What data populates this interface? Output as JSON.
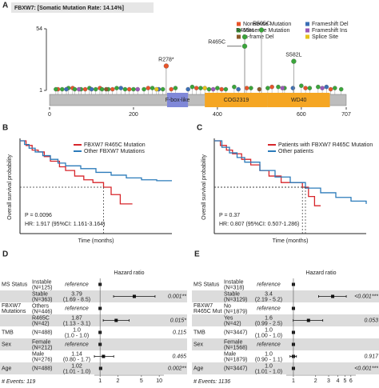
{
  "chart_data": [
    {
      "type": "lollipop",
      "label": "A",
      "title": "FBXW7: [Somatic Mutation Rate: 14.14%]",
      "xlim": [
        0,
        707
      ],
      "xticks": [
        0,
        200,
        400,
        600,
        707
      ],
      "ylim": [
        1,
        54
      ],
      "yticks": [
        1,
        54
      ],
      "series": [
        {
          "name": "Nonsense Mutation",
          "color": "#e8542a",
          "x": [
            20,
            55,
            85,
            120,
            150,
            190,
            235,
            290,
            350,
            410,
            470,
            530,
            610,
            670
          ],
          "values": [
            2,
            3,
            2,
            3,
            2,
            2,
            3,
            2,
            3,
            2,
            3,
            4,
            3,
            2
          ]
        },
        {
          "name": "Missense Mutation",
          "color": "#3aa53a",
          "x": [
            15,
            30,
            45,
            60,
            75,
            95,
            110,
            125,
            140,
            160,
            180,
            200,
            225,
            245,
            270,
            300,
            340,
            360,
            380,
            400,
            420,
            440,
            480,
            520,
            545,
            560,
            600,
            620,
            640,
            680,
            695
          ],
          "values": [
            2,
            2,
            3,
            2,
            2,
            3,
            2,
            2,
            2,
            3,
            2,
            2,
            2,
            3,
            2,
            3,
            4,
            3,
            2,
            3,
            2,
            4,
            3,
            3,
            4,
            3,
            5,
            3,
            4,
            3,
            2
          ]
        },
        {
          "name": "In-frame Del",
          "color": "#8b5a2b",
          "x": [
            135,
            500
          ],
          "values": [
            2,
            2
          ]
        },
        {
          "name": "Frameshift Del",
          "color": "#3b6fb6",
          "x": [
            40,
            100,
            170,
            260,
            330,
            450,
            580,
            660
          ],
          "values": [
            2,
            2,
            3,
            2,
            2,
            2,
            3,
            4
          ]
        },
        {
          "name": "Frameshift Ins",
          "color": "#9b59b6",
          "x": [
            70,
            210,
            390,
            555,
            650
          ],
          "values": [
            2,
            2,
            2,
            3,
            3
          ]
        },
        {
          "name": "Splice Site",
          "color": "#e7c31a",
          "x": [
            255,
            370
          ],
          "values": [
            2,
            3
          ]
        }
      ],
      "labeled": [
        {
          "label": "R278*",
          "x": 278,
          "value": 22,
          "color": "#e8542a"
        },
        {
          "label": "R465H",
          "x": 465,
          "value": 47,
          "color": "#3aa53a"
        },
        {
          "label": "R465C",
          "x": 465,
          "value": 39,
          "color": "#3aa53a"
        },
        {
          "label": "R505C",
          "x": 505,
          "value": 53,
          "color": "#3aa53a"
        },
        {
          "label": "S582L",
          "x": 582,
          "value": 26,
          "color": "#3aa53a"
        }
      ],
      "domains": [
        {
          "name": "F-box-like",
          "start": 280,
          "end": 330,
          "color": "#8088d8"
        },
        {
          "name": "COG2319",
          "start": 370,
          "end": 520,
          "color": "#f5a623"
        },
        {
          "name": "WD40",
          "start": 520,
          "end": 668,
          "color": "#f5a623"
        }
      ]
    },
    {
      "type": "km",
      "label": "B",
      "xlabel": "Time (months)",
      "ylabel": "Overall survival probability",
      "xlim": [
        0,
        100
      ],
      "ylim": [
        0,
        1
      ],
      "series": [
        {
          "name": "FBXW7 R465C Mutation",
          "color": "#d7262b",
          "x": [
            0,
            4,
            8,
            12,
            16,
            20,
            26,
            30,
            36,
            42,
            48,
            55,
            60,
            66,
            74
          ],
          "values": [
            1,
            0.95,
            0.9,
            0.88,
            0.83,
            0.78,
            0.72,
            0.68,
            0.62,
            0.58,
            0.55,
            0.5,
            0.42,
            0.32,
            0.32
          ]
        },
        {
          "name": "Other FBXW7 Mutations",
          "color": "#2b7bba",
          "x": [
            0,
            3,
            6,
            10,
            15,
            20,
            25,
            30,
            40,
            50,
            60,
            70,
            80,
            90,
            100
          ],
          "values": [
            1,
            0.96,
            0.92,
            0.88,
            0.84,
            0.8,
            0.76,
            0.73,
            0.7,
            0.66,
            0.63,
            0.6,
            0.58,
            0.57,
            0.57
          ]
        }
      ],
      "annotations": [
        "P = 0.0096",
        "HR: 1.917 (95%CI: 1.161-3.164)"
      ]
    },
    {
      "type": "km",
      "label": "C",
      "xlabel": "Time (months)",
      "ylabel": "Overall survival probability",
      "xlim": [
        0,
        100
      ],
      "ylim": [
        0,
        1
      ],
      "series": [
        {
          "name": "Patients with FBXW7 R465C Mutation",
          "color": "#d7262b",
          "x": [
            0,
            4,
            8,
            12,
            18,
            24,
            30,
            36,
            44,
            58,
            62,
            66,
            70
          ],
          "values": [
            1,
            0.95,
            0.9,
            0.86,
            0.8,
            0.74,
            0.68,
            0.62,
            0.55,
            0.5,
            0.4,
            0.3,
            0.3
          ]
        },
        {
          "name": "Other patients",
          "color": "#2b7bba",
          "x": [
            0,
            5,
            10,
            15,
            20,
            30,
            40,
            50,
            60,
            70,
            80,
            90,
            100
          ],
          "values": [
            1,
            0.93,
            0.87,
            0.82,
            0.77,
            0.68,
            0.61,
            0.55,
            0.49,
            0.44,
            0.39,
            0.35,
            0.32
          ]
        }
      ],
      "annotations": [
        "P = 0.37",
        "HR: 0.807 (95%CI: 0.507-1.286)"
      ]
    },
    {
      "type": "forest",
      "label": "D",
      "xlabel": "Hazard ratio",
      "log_x": true,
      "xlim": [
        0.8,
        12
      ],
      "xticks": [
        1,
        2,
        5,
        10
      ],
      "rows": [
        {
          "variable": "MS Status",
          "level": "Instable",
          "n": "(N=125)",
          "hr": 1,
          "hr_label": "reference"
        },
        {
          "level": "Stable",
          "n": "(N=363)",
          "hr": 3.79,
          "ci": [
            1.69,
            8.5
          ],
          "ci_label": "(1.69 - 8.5)",
          "p": "0.001**"
        },
        {
          "variable": "FBXW7 Mutations",
          "level": "Others",
          "n": "(N=446)",
          "hr": 1,
          "hr_label": "reference"
        },
        {
          "level": "R465C",
          "n": "(N=42)",
          "hr": 1.87,
          "ci": [
            1.13,
            3.1
          ],
          "ci_label": "(1.13 - 3.1)",
          "p": "0.015*",
          "p_color": "#d7262b"
        },
        {
          "variable": "TMB",
          "n": "(N=488)",
          "hr": 1,
          "hr_label": "1.0",
          "ci": [
            1,
            1
          ],
          "ci_label": "(1.0 - 1.0)",
          "p": "0.115"
        },
        {
          "variable": "Sex",
          "level": "Female",
          "n": "(N=212)",
          "hr": 1,
          "hr_label": "reference"
        },
        {
          "level": "Male",
          "n": "(N=276)",
          "hr": 1.14,
          "ci": [
            0.8,
            1.7
          ],
          "ci_label": "(0.80 - 1.7)",
          "p": "0.465"
        },
        {
          "variable": "Age",
          "n": "(N=488)",
          "hr": 1.02,
          "ci": [
            1.01,
            1.0
          ],
          "ci_label": "(1.01 - 1.0)",
          "p": "0.002**"
        }
      ],
      "events": "# Events: 119"
    },
    {
      "type": "forest",
      "label": "E",
      "xlabel": "Hazard ratio",
      "log_x": true,
      "xlim": [
        0.8,
        7
      ],
      "xticks": [
        1,
        2,
        3,
        4,
        5,
        6
      ],
      "rows": [
        {
          "variable": "MS Status",
          "level": "Instable",
          "n": "(N=318)",
          "hr": 1,
          "hr_label": "reference"
        },
        {
          "level": "Stable",
          "n": "(N=3129)",
          "hr": 3.4,
          "ci": [
            2.19,
            5.2
          ],
          "ci_label": "(2.19 - 5.2)",
          "p": "<0.001***"
        },
        {
          "variable": "FBXW7 R465C Mut",
          "level": "No",
          "n": "(N=1879)",
          "hr": 1,
          "hr_label": "reference"
        },
        {
          "level": "Yes",
          "n": "(N=42)",
          "hr": 1.6,
          "hr_label": "1.6",
          "ci": [
            0.99,
            2.5
          ],
          "ci_label": "(0.99 - 2.5)",
          "p": "0.053",
          "p_color": "#d7262b"
        },
        {
          "variable": "TMB",
          "n": "(N=3447)",
          "hr": 1,
          "hr_label": "1.0",
          "ci": [
            1,
            1
          ],
          "ci_label": "(1.00 - 1.0)"
        },
        {
          "variable": "Sex",
          "level": "Female",
          "n": "(N=1568)",
          "hr": 1,
          "hr_label": "reference"
        },
        {
          "level": "Male",
          "n": "(N=1879)",
          "hr": 1,
          "hr_label": "1.0",
          "ci": [
            0.9,
            1.1
          ],
          "ci_label": "(0.90 - 1.1)",
          "p": "0.917"
        },
        {
          "variable": "Age",
          "n": "(N=3447)",
          "hr": 1,
          "hr_label": "1.0",
          "ci": [
            1.01,
            1.0
          ],
          "ci_label": "(1.01 - 1.0)",
          "p": "<0.001***"
        }
      ],
      "events": "# Events: 1136"
    }
  ]
}
